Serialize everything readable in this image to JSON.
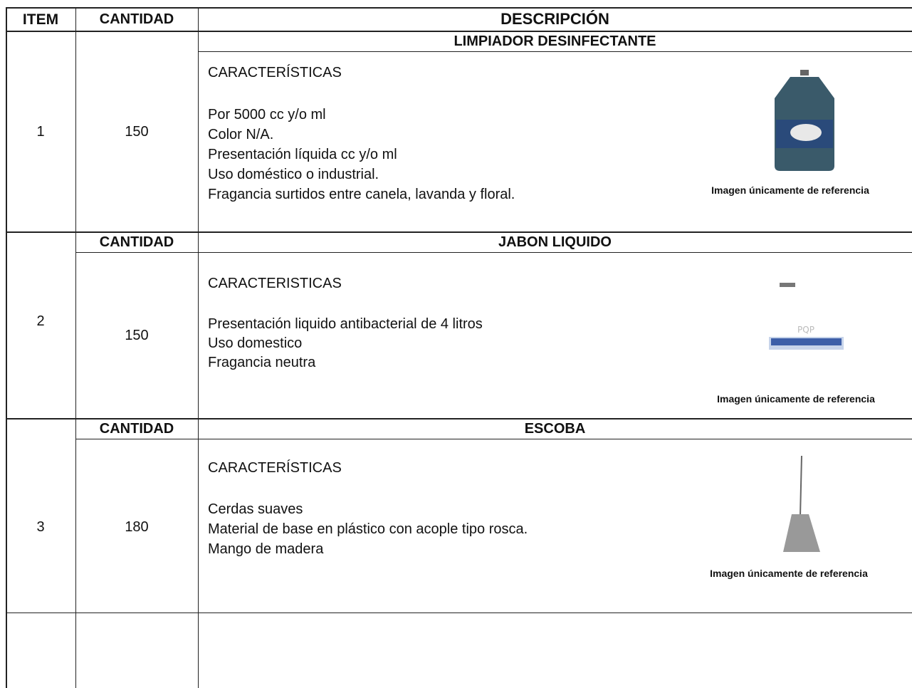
{
  "header": {
    "item": "ITEM",
    "cantidad": "CANTIDAD",
    "descripcion": "DESCRIPCIÓN"
  },
  "items": [
    {
      "title": "LIMPIADOR DESINFECTANTE",
      "number": "1",
      "quantity": "150",
      "label": "CARACTERÍSTICAS",
      "lines": [
        "Por 5000 cc y/o ml",
        "Color N/A.",
        "Presentación líquida cc y/o ml",
        "Uso doméstico o industrial.",
        "Fragancia surtidos entre canela, lavanda y floral."
      ],
      "caption": "Imagen únicamente de referencia"
    },
    {
      "cantidad_header": "CANTIDAD",
      "title": "JABON LIQUIDO",
      "number": "2",
      "quantity": "150",
      "label": "CARACTERISTICAS",
      "lines": [
        "Presentación liquido antibacterial de 4 litros",
        "Uso domestico",
        "Fragancia neutra"
      ],
      "caption": "Imagen únicamente de referencia"
    },
    {
      "cantidad_header": "CANTIDAD",
      "title": "ESCOBA",
      "number": "3",
      "quantity": "180",
      "label": "CARACTERÍSTICAS",
      "lines": [
        "Cerdas suaves",
        "Material de base en plástico con acople tipo rosca.",
        "Mango de madera"
      ],
      "caption": "Imagen únicamente de referencia"
    }
  ]
}
